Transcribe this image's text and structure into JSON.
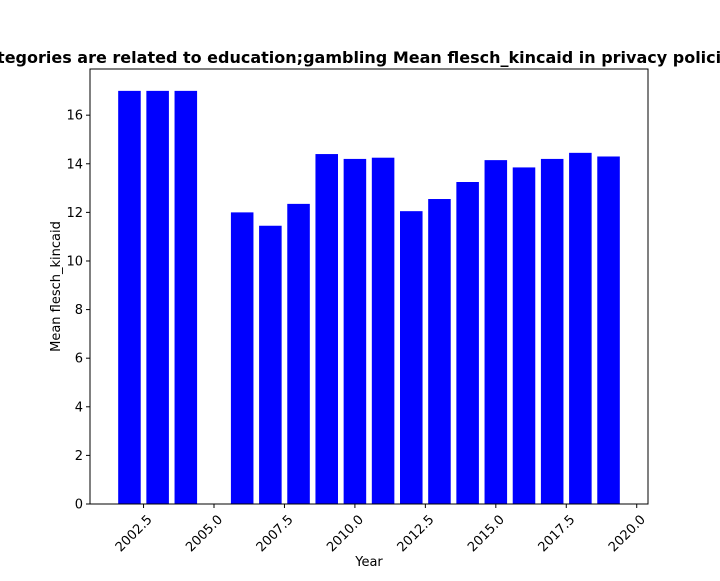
{
  "chart_data": {
    "type": "bar",
    "title": "Categories are related to education;gambling Mean flesch_kincaid in privacy policies",
    "xlabel": "Year",
    "ylabel": "Mean flesch_kincaid",
    "xlim": [
      2000.6,
      2020.4
    ],
    "ylim": [
      0,
      17.9
    ],
    "bar_width": 0.8,
    "bar_color": "#0000ff",
    "grid": false,
    "x_ticks": [
      2002.5,
      2005.0,
      2007.5,
      2010.0,
      2012.5,
      2015.0,
      2017.5,
      2020.0
    ],
    "x_tick_labels": [
      "2002.5",
      "2005.0",
      "2007.5",
      "2010.0",
      "2012.5",
      "2015.0",
      "2017.5",
      "2020.0"
    ],
    "x_tick_rotation": 45,
    "y_ticks": [
      0,
      2,
      4,
      6,
      8,
      10,
      12,
      14,
      16
    ],
    "y_tick_labels": [
      "0",
      "2",
      "4",
      "6",
      "8",
      "10",
      "12",
      "14",
      "16"
    ],
    "x": [
      2002,
      2003,
      2004,
      2006,
      2007,
      2008,
      2009,
      2010,
      2011,
      2012,
      2013,
      2014,
      2015,
      2016,
      2017,
      2018,
      2019
    ],
    "values": [
      17.0,
      17.0,
      17.0,
      12.0,
      11.45,
      12.35,
      14.4,
      14.2,
      14.25,
      12.05,
      12.55,
      13.25,
      14.15,
      13.85,
      14.2,
      14.45,
      14.3
    ]
  }
}
